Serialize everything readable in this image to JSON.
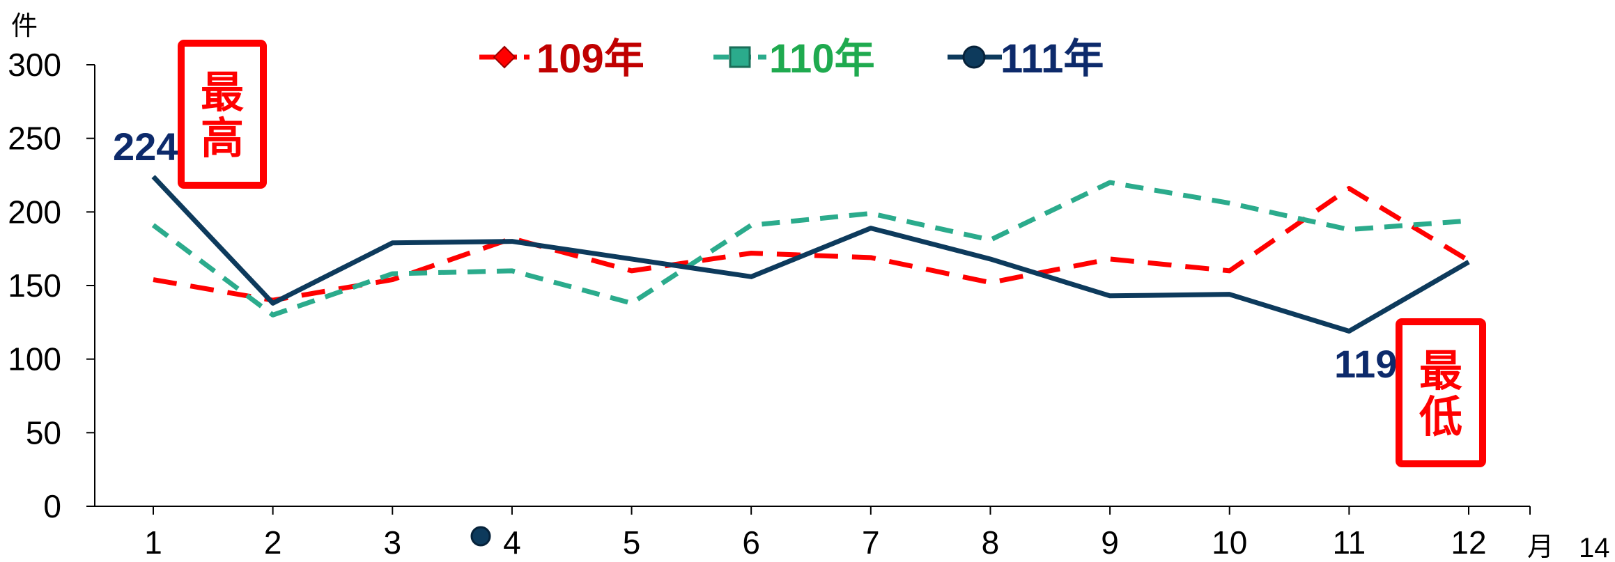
{
  "chart_data": {
    "type": "line",
    "y_unit": "件",
    "x_unit": "月",
    "categories": [
      "1",
      "2",
      "3",
      "4",
      "5",
      "6",
      "7",
      "8",
      "9",
      "10",
      "11",
      "12"
    ],
    "yticks": [
      "0",
      "50",
      "100",
      "150",
      "200",
      "250",
      "300"
    ],
    "ylim": [
      0,
      300
    ],
    "grid": false,
    "legend_position": "top-center",
    "series": [
      {
        "name": "109年",
        "color": "#ff0000",
        "line_style": "dashed",
        "marker": "diamond",
        "values": [
          154,
          140,
          154,
          182,
          160,
          172,
          169,
          152,
          168,
          160,
          216,
          167
        ]
      },
      {
        "name": "110年",
        "color": "#2bab8c",
        "line_style": "dashed",
        "marker": "square",
        "values": [
          191,
          130,
          158,
          160,
          138,
          191,
          199,
          181,
          220,
          206,
          188,
          194
        ]
      },
      {
        "name": "111年",
        "color": "#0d3a5c",
        "line_style": "solid",
        "marker": "circle",
        "values": [
          224,
          138,
          179,
          180,
          168,
          156,
          189,
          168,
          143,
          144,
          119,
          166
        ]
      }
    ],
    "data_labels": [
      {
        "text": "224",
        "color": "#0d2a6b"
      },
      {
        "text": "119",
        "color": "#0d2a6b"
      }
    ],
    "annotations": [
      {
        "text": "最高",
        "color": "#ff0000"
      },
      {
        "text": "最低",
        "color": "#ff0000"
      }
    ]
  },
  "page_number": "14"
}
